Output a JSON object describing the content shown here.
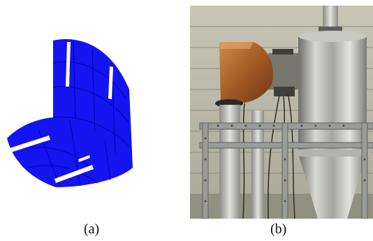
{
  "figure": {
    "panels": [
      {
        "caption": "(a)",
        "icon": "blue-elbow-duct-model-icon",
        "color": "#1414f0"
      },
      {
        "caption": "(b)",
        "icon": "copper-elbow-and-cyclone-photo"
      }
    ]
  }
}
